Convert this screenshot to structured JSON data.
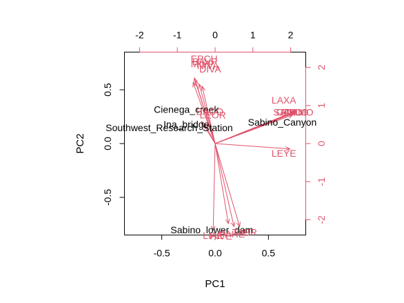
{
  "chart_data": {
    "type": "scatter",
    "subtype": "pca-biplot",
    "xlabel": "PC1",
    "ylabel": "PC2",
    "xlim": [
      -0.85,
      0.85
    ],
    "ylim": [
      -0.85,
      0.85
    ],
    "xticks": [
      -0.5,
      0.0,
      0.5
    ],
    "xtick_labels": [
      "-0.5",
      "0.0",
      "0.5"
    ],
    "yticks": [
      -0.5,
      0.0,
      0.5
    ],
    "ytick_labels": [
      "-0.5",
      "0.0",
      "0.5"
    ],
    "top_axis": {
      "lim": [
        -2.4,
        2.4
      ],
      "ticks": [
        -2,
        -1,
        0,
        1,
        2
      ],
      "tick_labels": [
        "-2",
        "-1",
        "0",
        "1",
        "2"
      ]
    },
    "right_axis": {
      "lim": [
        -2.4,
        2.4
      ],
      "ticks": [
        -2,
        -1,
        0,
        1,
        2
      ],
      "tick_labels": [
        "-2",
        "-1",
        "0",
        "1",
        "2"
      ]
    },
    "sites": [
      {
        "label": "Cienega_creek",
        "x": -0.27,
        "y": 0.31
      },
      {
        "label": "Ina_bridge",
        "x": -0.27,
        "y": 0.17
      },
      {
        "label": "Southwest_Research_Station",
        "x": -0.43,
        "y": 0.14
      },
      {
        "label": "Sabino_Canyon",
        "x": 0.63,
        "y": 0.19
      },
      {
        "label": "Sabino_lower_dam",
        "x": -0.03,
        "y": -0.81
      }
    ],
    "loadings": [
      {
        "label": "EPCH",
        "x": -0.29,
        "y": 2.2
      },
      {
        "label": "BAVP",
        "x": -0.27,
        "y": 2.13
      },
      {
        "label": "MIVP",
        "x": -0.33,
        "y": 2.07
      },
      {
        "label": "NIVA",
        "x": -0.19,
        "y": 2.02
      },
      {
        "label": "DIVA",
        "x": -0.13,
        "y": 1.93
      },
      {
        "label": "BACO",
        "x": -0.14,
        "y": 0.82
      },
      {
        "label": "LEOR",
        "x": -0.06,
        "y": 0.73
      },
      {
        "label": "LAXA",
        "x": 1.82,
        "y": 1.12
      },
      {
        "label": "SAIN",
        "x": 1.84,
        "y": 0.8
      },
      {
        "label": "CAFU",
        "x": 1.96,
        "y": 0.8
      },
      {
        "label": "FUCO",
        "x": 2.11,
        "y": 0.8
      },
      {
        "label": "DAMO",
        "x": 2.22,
        "y": 0.8
      },
      {
        "label": "LEYE",
        "x": 1.82,
        "y": -0.28
      },
      {
        "label": "TABR",
        "x": 0.78,
        "y": -2.35
      },
      {
        "label": "PAHE",
        "x": 0.45,
        "y": -2.4
      },
      {
        "label": "LIAE",
        "x": -0.05,
        "y": -2.43
      },
      {
        "label": "HIVE",
        "x": 0.15,
        "y": -2.45
      }
    ],
    "arrows": [
      {
        "x": -0.55,
        "y": 1.72
      },
      {
        "x": -0.52,
        "y": 1.65
      },
      {
        "x": -0.58,
        "y": 1.6
      },
      {
        "x": -0.42,
        "y": 1.56
      },
      {
        "x": -0.34,
        "y": 1.5
      },
      {
        "x": -0.36,
        "y": 0.58
      },
      {
        "x": -0.28,
        "y": 0.52
      },
      {
        "x": 2.05,
        "y": 0.75
      },
      {
        "x": 2.1,
        "y": 0.8
      },
      {
        "x": 2.1,
        "y": 0.82
      },
      {
        "x": 2.12,
        "y": 0.85
      },
      {
        "x": 2.16,
        "y": 0.85
      },
      {
        "x": 1.98,
        "y": -0.14
      },
      {
        "x": 0.65,
        "y": -2.18
      },
      {
        "x": 0.5,
        "y": -2.18
      },
      {
        "x": -0.05,
        "y": -2.28
      },
      {
        "x": 0.35,
        "y": -2.1
      }
    ],
    "grid": false,
    "legend": "none",
    "colors": {
      "axes": "#000000",
      "loadings": "#DF536B"
    }
  }
}
